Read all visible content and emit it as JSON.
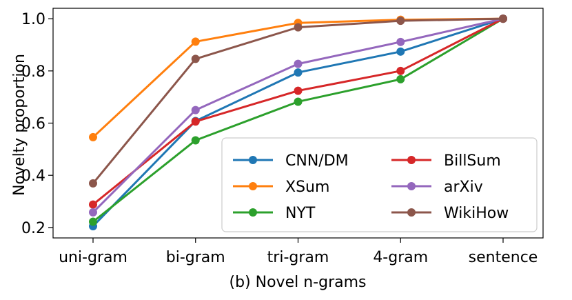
{
  "chart_data": {
    "type": "line",
    "xlabel": "(b) Novel n-grams",
    "ylabel": "Novelty proportion",
    "categories": [
      "uni-gram",
      "bi-gram",
      "tri-gram",
      "4-gram",
      "sentence"
    ],
    "ylim": [
      0.16,
      1.04
    ],
    "yticks": [
      0.2,
      0.4,
      0.6,
      0.8,
      1.0
    ],
    "ytick_labels": [
      "0.2",
      "0.4",
      "0.6",
      "0.8",
      "1.0"
    ],
    "grid": false,
    "legend_position": "lower-right",
    "legend_columns": 2,
    "series": [
      {
        "name": "CNN/DM",
        "color": "#1f77b4",
        "values": [
          0.205,
          0.608,
          0.794,
          0.874,
          1.0
        ]
      },
      {
        "name": "XSum",
        "color": "#ff7f0e",
        "values": [
          0.546,
          0.912,
          0.984,
          0.996,
          1.0
        ]
      },
      {
        "name": "NYT",
        "color": "#2ca02c",
        "values": [
          0.222,
          0.534,
          0.682,
          0.768,
          1.0
        ]
      },
      {
        "name": "BillSum",
        "color": "#d62728",
        "values": [
          0.288,
          0.606,
          0.724,
          0.8,
          1.0
        ]
      },
      {
        "name": "arXiv",
        "color": "#9467bd",
        "values": [
          0.258,
          0.65,
          0.827,
          0.911,
          1.0
        ]
      },
      {
        "name": "WikiHow",
        "color": "#8c564b",
        "values": [
          0.369,
          0.846,
          0.967,
          0.992,
          1.0
        ]
      }
    ]
  }
}
